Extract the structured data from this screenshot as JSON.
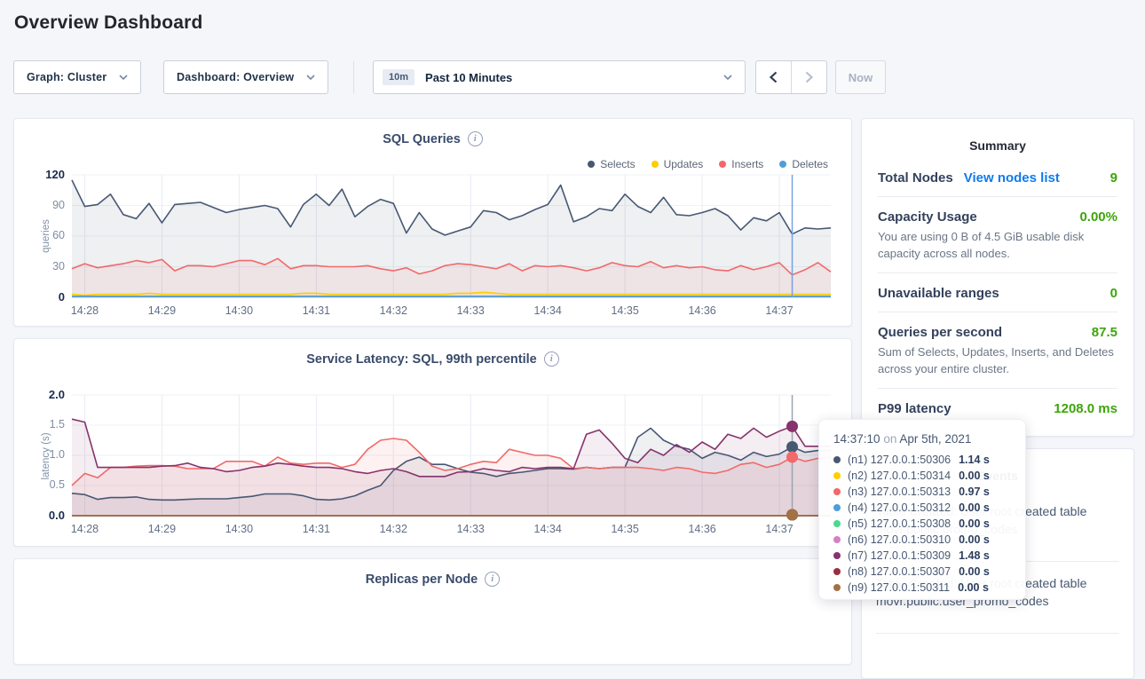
{
  "page": {
    "title": "Overview Dashboard"
  },
  "toolbar": {
    "graph_select_label": "Graph: Cluster",
    "dashboard_select_label": "Dashboard: Overview",
    "time_range_badge": "10m",
    "time_range_label": "Past 10 Minutes",
    "now_button": "Now"
  },
  "colors": {
    "accent_link": "#0f7bef",
    "positive_green": "#3ca50a",
    "sql_hover_line": "#7aa0e4",
    "latency_hover_line": "#9aa3b2",
    "grid": "#e8ebf2"
  },
  "chart_data": [
    {
      "type": "line",
      "title": "SQL Queries",
      "ylabel": "queries",
      "ylim": [
        0,
        120
      ],
      "yticks": [
        0,
        30,
        60,
        90,
        120
      ],
      "ytick_labels": [
        "0",
        "30",
        "60",
        "90",
        "120"
      ],
      "x_ticks": [
        "14:28",
        "14:29",
        "14:30",
        "14:31",
        "14:32",
        "14:33",
        "14:34",
        "14:35",
        "14:36",
        "14:37"
      ],
      "sample_interval_s": 10,
      "legend_position": "top-right",
      "grid": true,
      "hover_time": "14:37:10",
      "series": [
        {
          "name": "Selects",
          "color": "#475872",
          "values": [
            115,
            89,
            91,
            101,
            81,
            77,
            92,
            73,
            91,
            92,
            93,
            88,
            83,
            86,
            88,
            90,
            87,
            69,
            91,
            101,
            90,
            106,
            79,
            89,
            96,
            92,
            63,
            83,
            67,
            61,
            65,
            69,
            85,
            83,
            76,
            80,
            86,
            91,
            110,
            74,
            79,
            87,
            85,
            101,
            89,
            83,
            98,
            81,
            80,
            83,
            87,
            80,
            66,
            78,
            75,
            83,
            62,
            68,
            67,
            68
          ]
        },
        {
          "name": "Updates",
          "color": "#FFCD02",
          "values": [
            3,
            2,
            3,
            3,
            3,
            3,
            4,
            3,
            3,
            3,
            3,
            3,
            3,
            3,
            3,
            3,
            3,
            3,
            4,
            4,
            3,
            3,
            3,
            3,
            3,
            3,
            3,
            3,
            3,
            3,
            4,
            4,
            5,
            4,
            3,
            3,
            3,
            3,
            3,
            3,
            3,
            3,
            3,
            3,
            3,
            3,
            3,
            3,
            3,
            3,
            3,
            3,
            3,
            3,
            3,
            3,
            3,
            3,
            3,
            3
          ]
        },
        {
          "name": "Inserts",
          "color": "#F16969",
          "values": [
            28,
            33,
            29,
            31,
            33,
            36,
            34,
            37,
            26,
            31,
            31,
            30,
            33,
            36,
            36,
            32,
            38,
            28,
            31,
            31,
            30,
            30,
            30,
            31,
            28,
            26,
            29,
            23,
            26,
            31,
            33,
            32,
            30,
            28,
            33,
            26,
            31,
            30,
            31,
            29,
            26,
            29,
            34,
            31,
            30,
            35,
            29,
            31,
            29,
            30,
            27,
            26,
            31,
            27,
            30,
            34,
            22,
            27,
            34,
            25
          ]
        },
        {
          "name": "Deletes",
          "color": "#4E9FD8",
          "values": 1
        }
      ]
    },
    {
      "type": "line",
      "title": "Service Latency: SQL, 99th percentile",
      "ylabel": "latency (s)",
      "ylim": [
        0,
        2.0
      ],
      "yticks": [
        0,
        0.5,
        1.0,
        1.5,
        2.0
      ],
      "ytick_labels": [
        "0.0",
        "0.5",
        "1.0",
        "1.5",
        "2.0"
      ],
      "x_ticks": [
        "14:28",
        "14:29",
        "14:30",
        "14:31",
        "14:32",
        "14:33",
        "14:34",
        "14:35",
        "14:36",
        "14:37"
      ],
      "sample_interval_s": 10,
      "grid": true,
      "hover_time": "14:37:10",
      "series": [
        {
          "name": "(n1) 127.0.0.1:50306",
          "color": "#475872",
          "values": [
            0.37,
            0.35,
            0.27,
            0.3,
            0.3,
            0.31,
            0.27,
            0.26,
            0.26,
            0.27,
            0.28,
            0.28,
            0.28,
            0.3,
            0.32,
            0.36,
            0.36,
            0.36,
            0.33,
            0.27,
            0.26,
            0.28,
            0.33,
            0.42,
            0.5,
            0.75,
            0.9,
            0.97,
            0.85,
            0.85,
            0.78,
            0.72,
            0.7,
            0.65,
            0.7,
            0.72,
            0.75,
            0.78,
            0.78,
            0.77,
            0.8,
            0.78,
            0.8,
            0.8,
            1.3,
            1.45,
            1.25,
            1.15,
            1.1,
            0.95,
            1.05,
            1.0,
            0.92,
            1.05,
            0.98,
            1.02,
            1.14,
            1.05,
            1.08,
            1.08
          ]
        },
        {
          "name": "(n2) 127.0.0.1:50314",
          "color": "#FFCD02",
          "values": 0
        },
        {
          "name": "(n3) 127.0.0.1:50313",
          "color": "#F16969",
          "values": [
            0.5,
            0.7,
            0.63,
            0.8,
            0.8,
            0.82,
            0.83,
            0.83,
            0.82,
            0.78,
            0.78,
            0.78,
            0.9,
            0.9,
            0.9,
            0.82,
            0.97,
            0.87,
            0.85,
            0.87,
            0.87,
            0.8,
            0.85,
            1.1,
            1.25,
            1.28,
            1.25,
            1.05,
            0.82,
            0.75,
            0.78,
            0.85,
            0.9,
            0.88,
            1.1,
            1.05,
            1.0,
            1.0,
            0.95,
            0.78,
            0.8,
            0.78,
            0.8,
            0.8,
            0.8,
            0.78,
            0.75,
            0.8,
            0.78,
            0.72,
            0.7,
            0.75,
            0.85,
            0.88,
            0.8,
            0.85,
            0.97,
            0.9,
            0.95,
            0.97
          ]
        },
        {
          "name": "(n4) 127.0.0.1:50312",
          "color": "#4E9FD8",
          "values": 0
        },
        {
          "name": "(n5) 127.0.0.1:50308",
          "color": "#49D990",
          "values": 0
        },
        {
          "name": "(n6) 127.0.0.1:50310",
          "color": "#D77FBF",
          "values": 0
        },
        {
          "name": "(n7) 127.0.0.1:50309",
          "color": "#87326D",
          "values": [
            1.6,
            1.55,
            0.8,
            0.8,
            0.8,
            0.8,
            0.8,
            0.82,
            0.83,
            0.87,
            0.8,
            0.78,
            0.73,
            0.75,
            0.8,
            0.82,
            0.87,
            0.85,
            0.82,
            0.8,
            0.8,
            0.78,
            0.73,
            0.7,
            0.75,
            0.78,
            0.73,
            0.65,
            0.65,
            0.65,
            0.72,
            0.73,
            0.78,
            0.75,
            0.73,
            0.8,
            0.78,
            0.8,
            0.8,
            0.78,
            1.35,
            1.42,
            1.2,
            0.95,
            0.88,
            1.1,
            1.0,
            1.18,
            1.05,
            1.22,
            1.1,
            1.35,
            1.28,
            1.45,
            1.3,
            1.4,
            1.48,
            1.15,
            1.15,
            1.15
          ]
        },
        {
          "name": "(n8) 127.0.0.1:50307",
          "color": "#9B2D41",
          "values": 0
        },
        {
          "name": "(n9) 127.0.0.1:50311",
          "color": "#A27245",
          "values": 0
        }
      ]
    },
    {
      "type": "line",
      "title": "Replicas per Node"
    }
  ],
  "summary": {
    "title": "Summary",
    "total_nodes": {
      "label": "Total Nodes",
      "link": "View nodes list",
      "value": "9"
    },
    "capacity": {
      "label": "Capacity Usage",
      "value": "0.00%",
      "desc": "You are using 0 B of 4.5 GiB usable disk capacity across all nodes."
    },
    "unavailable": {
      "label": "Unavailable ranges",
      "value": "0"
    },
    "qps": {
      "label": "Queries per second",
      "value": "87.5",
      "desc": "Sum of Selects, Updates, Inserts, and Deletes across your entire cluster."
    },
    "p99": {
      "label": "P99 latency",
      "value": "1208.0 ms"
    }
  },
  "events": {
    "title": "Events",
    "items": [
      {
        "text": "Table Created: User root created table movr.public.promo_codes"
      },
      {
        "text": "Table Created: User root created table movr.public.user_promo_codes"
      }
    ]
  },
  "tooltip": {
    "time": "14:37:10",
    "on": "on",
    "date": "Apr 5th, 2021",
    "rows": [
      {
        "node": "(n1) 127.0.0.1:50306",
        "value": "1.14 s",
        "color": "#475872"
      },
      {
        "node": "(n2) 127.0.0.1:50314",
        "value": "0.00 s",
        "color": "#FFCD02"
      },
      {
        "node": "(n3) 127.0.0.1:50313",
        "value": "0.97 s",
        "color": "#F16969"
      },
      {
        "node": "(n4) 127.0.0.1:50312",
        "value": "0.00 s",
        "color": "#4E9FD8"
      },
      {
        "node": "(n5) 127.0.0.1:50308",
        "value": "0.00 s",
        "color": "#49D990"
      },
      {
        "node": "(n6) 127.0.0.1:50310",
        "value": "0.00 s",
        "color": "#D77FBF"
      },
      {
        "node": "(n7) 127.0.0.1:50309",
        "value": "1.48 s",
        "color": "#87326D"
      },
      {
        "node": "(n8) 127.0.0.1:50307",
        "value": "0.00 s",
        "color": "#9B2D41"
      },
      {
        "node": "(n9) 127.0.0.1:50311",
        "value": "0.00 s",
        "color": "#A27245"
      }
    ]
  }
}
